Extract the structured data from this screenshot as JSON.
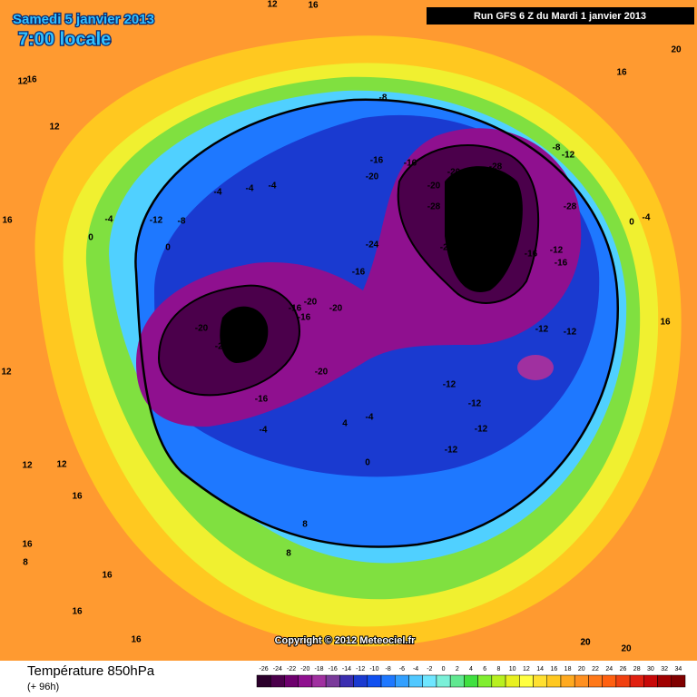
{
  "header": {
    "date": "Samedi 5 janvier 2013",
    "time": "7:00 locale",
    "run": "Run GFS 6 Z du Mardi 1 janvier 2013"
  },
  "footer": {
    "title": "Température 850hPa",
    "lead": "(+ 96h)",
    "copyright": "Copyright © 2012 Meteociel.fr"
  },
  "map_labels": [
    "12",
    "16",
    "12",
    "20",
    "16",
    "12",
    "16",
    "16",
    "12",
    "16",
    "8",
    "-8",
    "-16",
    "-16",
    "-20",
    "-28",
    "-20",
    "-28",
    "-20",
    "-28",
    "-24",
    "-24",
    "-16",
    "-8",
    "-12",
    "-28",
    "-12",
    "-16",
    "-16",
    "-20",
    "-28",
    "-24",
    "-16",
    "-20",
    "-20",
    "-20",
    "-16",
    "-16",
    "-12",
    "-12",
    "-12",
    "-12",
    "-12",
    "-12",
    "-4",
    "-4",
    "0",
    "4",
    "0",
    "-4",
    "-8",
    "-12",
    "-4",
    "-4",
    "-4",
    "0",
    "8",
    "8",
    "12",
    "12",
    "16",
    "16",
    "16",
    "16",
    "20",
    "20",
    "20",
    "16",
    "0",
    "-4"
  ],
  "colorbar": {
    "ticks": [
      -26,
      -24,
      -22,
      -20,
      -18,
      -16,
      -14,
      -12,
      -10,
      -8,
      -6,
      -4,
      -2,
      0,
      2,
      4,
      6,
      8,
      10,
      12,
      14,
      16,
      18,
      20,
      22,
      24,
      26,
      28,
      30,
      32,
      34
    ],
    "colors": [
      "#2b002b",
      "#4b004b",
      "#6e006e",
      "#8f108f",
      "#a030a0",
      "#7a3a9a",
      "#3b2eb0",
      "#1a3ad0",
      "#1050f0",
      "#1e78ff",
      "#32a0ff",
      "#50c8ff",
      "#6ee6ff",
      "#7af0d8",
      "#60e890",
      "#40e040",
      "#80ee30",
      "#b8f020",
      "#e8f020",
      "#ffff40",
      "#ffe030",
      "#ffc820",
      "#ffaa20",
      "#ff9020",
      "#ff7818",
      "#ff6010",
      "#f04010",
      "#e02010",
      "#c80808",
      "#a00000",
      "#800000"
    ]
  }
}
